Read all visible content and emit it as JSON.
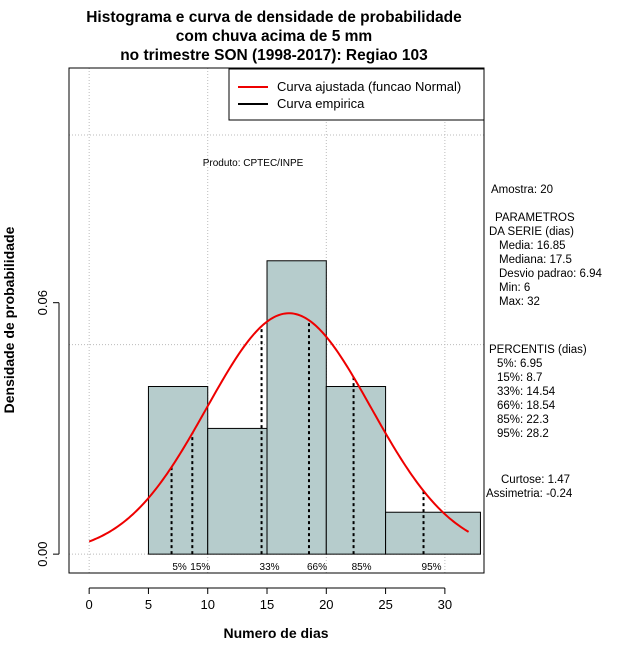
{
  "chart_data": {
    "type": "bar",
    "title_lines": [
      "Histograma e curva de densidade de probabilidade",
      "com chuva acima de 5 mm",
      "no trimestre SON (1998-2017): Regiao 103"
    ],
    "xlabel": "Numero de dias",
    "ylabel": "Densidade de probabilidade",
    "product": "Produto: CPTEC/INPE",
    "xlim": [
      -1.7,
      33.3
    ],
    "ylim": [
      -0.0045,
      0.116
    ],
    "x_ticks": [
      0,
      5,
      10,
      15,
      20,
      25,
      30
    ],
    "y_ticks": [
      0.0,
      0.06
    ],
    "y_tick_labels": [
      "0.00",
      "0.06"
    ],
    "bars": [
      {
        "x0": 5,
        "x1": 10,
        "density": 0.04
      },
      {
        "x0": 10,
        "x1": 15,
        "density": 0.03
      },
      {
        "x0": 15,
        "x1": 20,
        "density": 0.07
      },
      {
        "x0": 20,
        "x1": 25,
        "density": 0.04
      },
      {
        "x0": 25,
        "x1": 33,
        "density": 0.01
      }
    ],
    "normal_curve": {
      "mean": 16.85,
      "sd": 6.94,
      "x_from": 0,
      "x_to": 32
    },
    "grid_x": [
      0,
      10,
      20,
      30
    ],
    "grid_y": [
      0.0,
      0.05,
      0.1
    ],
    "percentile_lines": [
      {
        "label": "5%",
        "x": 6.95
      },
      {
        "label": "15%",
        "x": 8.7
      },
      {
        "label": "33%",
        "x": 14.54
      },
      {
        "label": "66%",
        "x": 18.54
      },
      {
        "label": "85%",
        "x": 22.3
      },
      {
        "label": "95%",
        "x": 28.2
      }
    ],
    "legend": {
      "position": "top-right",
      "entries": [
        {
          "label": "Curva ajustada (funcao Normal)",
          "color": "#ee0000"
        },
        {
          "label": "Curva empirica",
          "color": "#000000"
        }
      ]
    },
    "colors": {
      "bar_fill": "#b6cccc",
      "curve": "#ee0000",
      "grid": "#bbbbbb"
    },
    "side_panel": {
      "amostra": "Amostra: 20",
      "parametros": [
        "PARAMETROS",
        "DA SERIE (dias)",
        "Media: 16.85",
        "Mediana: 17.5",
        "Desvio padrao: 6.94",
        "Min: 6",
        "Max: 32"
      ],
      "percentis": [
        "PERCENTIS (dias)",
        "5%: 6.95",
        "15%: 8.7",
        "33%: 14.54",
        "66%: 18.54",
        "85%: 22.3",
        "95%: 28.2"
      ],
      "curtose": "Curtose: 1.47",
      "assimetria": "Assimetria: -0.24"
    }
  }
}
